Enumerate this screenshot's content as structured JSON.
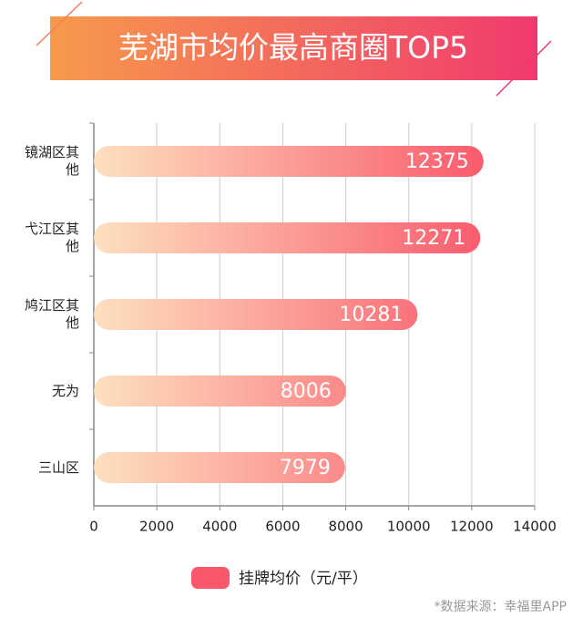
{
  "chart_data": {
    "type": "hbar",
    "title": "芜湖市均价最高商圈TOP5",
    "categories": [
      "镜湖区其他",
      "弋江区其他",
      "鸠江区其他",
      "无为",
      "三山区"
    ],
    "series": [
      {
        "name": "挂牌均价（元/平）",
        "color": "#f9586b",
        "values": [
          12375,
          12271,
          10281,
          8006,
          7979
        ]
      }
    ],
    "xlim": [
      0,
      14000
    ],
    "xticks": [
      0,
      2000,
      4000,
      6000,
      8000,
      10000,
      12000,
      14000
    ],
    "grid": true,
    "source": "*数据来源：幸福里APP"
  }
}
